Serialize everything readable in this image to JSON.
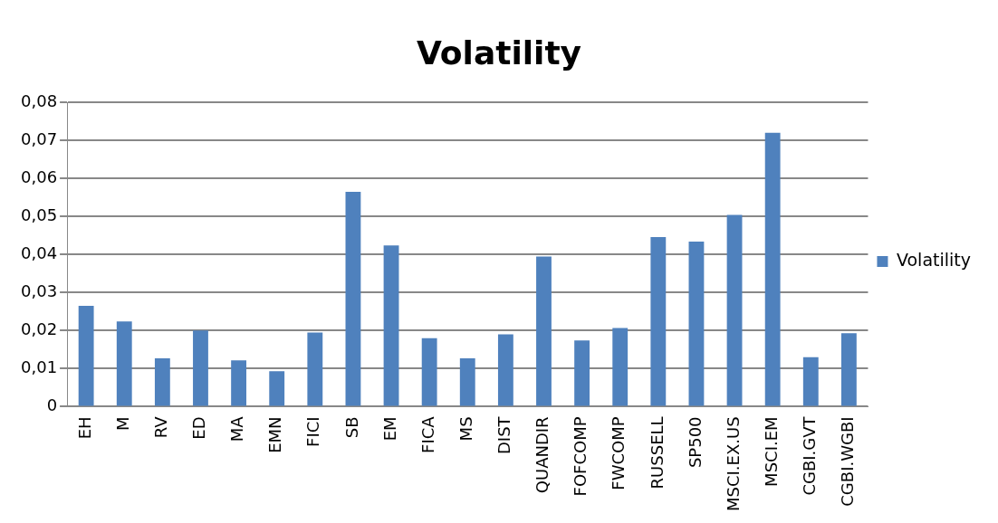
{
  "chart_data": {
    "type": "bar",
    "title": "Volatility",
    "categories": [
      "EH",
      "M",
      "RV",
      "ED",
      "MA",
      "EMN",
      "FICI",
      "SB",
      "EM",
      "FICA",
      "MS",
      "DIST",
      "QUANDIR",
      "FOFCOMP",
      "FWCOMP",
      "RUSSELL",
      "SP500",
      "MSCI.EX.US",
      "MSCI.EM",
      "CGBI.GVT",
      "CGBI.WGBI"
    ],
    "series": [
      {
        "name": "Volatility",
        "color": "#4f81bd",
        "values": [
          0.0265,
          0.0224,
          0.0127,
          0.02,
          0.0122,
          0.0093,
          0.0195,
          0.0565,
          0.0424,
          0.018,
          0.0127,
          0.019,
          0.0395,
          0.0174,
          0.0207,
          0.0446,
          0.0434,
          0.0504,
          0.072,
          0.013,
          0.0193
        ]
      }
    ],
    "ylim": [
      0,
      0.08
    ],
    "yticks": [
      0,
      {
        "value": 0.01,
        "label": "0,01"
      },
      {
        "value": 0.02,
        "label": "0,02"
      },
      {
        "value": 0.03,
        "label": "0,03"
      },
      {
        "value": 0.04,
        "label": "0,04"
      },
      {
        "value": 0.05,
        "label": "0,05"
      },
      {
        "value": 0.06,
        "label": "0,06"
      },
      {
        "value": 0.07,
        "label": "0,07"
      },
      {
        "value": 0.08,
        "label": "0,08"
      }
    ],
    "grid": "y",
    "legend": "right"
  }
}
